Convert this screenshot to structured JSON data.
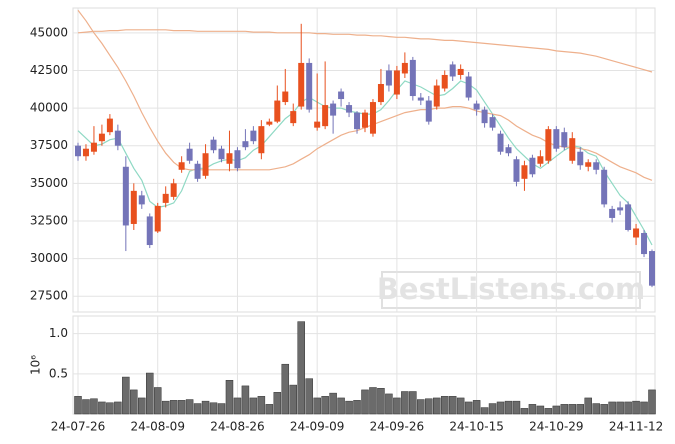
{
  "chart_data": {
    "type": "candlestick",
    "categories": [
      "24-07-26",
      null,
      null,
      null,
      null,
      null,
      null,
      null,
      null,
      null,
      "24-08-09",
      null,
      null,
      null,
      null,
      null,
      null,
      null,
      null,
      null,
      "24-08-26",
      null,
      null,
      null,
      null,
      null,
      null,
      null,
      null,
      null,
      "24-09-09",
      null,
      null,
      null,
      null,
      null,
      null,
      null,
      null,
      null,
      "24-09-26",
      null,
      null,
      null,
      null,
      null,
      null,
      null,
      null,
      null,
      "24-10-15",
      null,
      null,
      null,
      null,
      null,
      null,
      null,
      null,
      null,
      "24-10-29",
      null,
      null,
      null,
      null,
      null,
      null,
      null,
      null,
      null,
      "24-11-12",
      null,
      null
    ],
    "open": [
      37500,
      36800,
      37100,
      37800,
      38400,
      38500,
      36100,
      32300,
      34200,
      32800,
      31800,
      33700,
      34100,
      35900,
      37300,
      36300,
      35500,
      37900,
      37300,
      36300,
      37200,
      37800,
      38500,
      37000,
      38900,
      39100,
      40400,
      39000,
      40100,
      43000,
      38700,
      38800,
      40300,
      41100,
      40200,
      39700,
      38700,
      38300,
      40400,
      42500,
      40900,
      42300,
      43200,
      40700,
      40500,
      40100,
      41300,
      42900,
      42200,
      42100,
      40300,
      39900,
      39400,
      38300,
      37400,
      36600,
      35300,
      36700,
      36300,
      36500,
      38600,
      38400,
      36500,
      37100,
      36100,
      36400,
      35900,
      33300,
      33400,
      33600,
      31400,
      31700,
      30500
    ],
    "high": [
      37700,
      37600,
      38800,
      38900,
      39600,
      38900,
      36800,
      35000,
      34500,
      33000,
      33700,
      34800,
      35300,
      36800,
      37700,
      36500,
      37600,
      38100,
      37500,
      38500,
      37400,
      38600,
      38800,
      39200,
      39300,
      41500,
      42600,
      40300,
      45600,
      43300,
      42300,
      43100,
      40500,
      41300,
      40400,
      39800,
      39900,
      40600,
      42600,
      42900,
      42800,
      43700,
      43400,
      41000,
      40800,
      41900,
      42500,
      43100,
      42900,
      42400,
      40500,
      40100,
      39600,
      38500,
      37600,
      36800,
      36500,
      36900,
      37200,
      38800,
      38800,
      38700,
      38400,
      37400,
      36600,
      36600,
      36100,
      33500,
      33800,
      33800,
      32300,
      31900,
      30600
    ],
    "low": [
      36500,
      36500,
      36900,
      37500,
      38200,
      37200,
      30500,
      31900,
      33300,
      30700,
      31700,
      33400,
      33900,
      35700,
      36300,
      35100,
      35300,
      37000,
      36400,
      35800,
      35800,
      37200,
      37600,
      36600,
      38800,
      39000,
      40200,
      38800,
      39900,
      39700,
      38500,
      38600,
      38300,
      40100,
      39400,
      38300,
      38400,
      38100,
      40200,
      41100,
      40600,
      42000,
      40500,
      40200,
      38900,
      39900,
      41100,
      41800,
      41900,
      40500,
      39500,
      38700,
      38500,
      36900,
      36800,
      34800,
      34500,
      35400,
      36100,
      36300,
      37100,
      37200,
      36300,
      35900,
      35800,
      35600,
      33400,
      32400,
      32900,
      31800,
      30900,
      30100,
      28100
    ],
    "close": [
      36800,
      37300,
      37700,
      38300,
      39300,
      37500,
      32200,
      34500,
      33600,
      30900,
      33500,
      34300,
      35000,
      36400,
      36500,
      35300,
      37000,
      37200,
      36600,
      37000,
      36000,
      37400,
      37800,
      38800,
      39100,
      40500,
      41100,
      39800,
      43000,
      39900,
      39100,
      40200,
      39500,
      40600,
      39700,
      38600,
      39700,
      40400,
      41600,
      41500,
      42500,
      43000,
      40800,
      40500,
      39100,
      41500,
      42200,
      42100,
      42600,
      40700,
      39900,
      39000,
      38700,
      37100,
      37000,
      35100,
      36200,
      35600,
      36800,
      38600,
      37300,
      37400,
      38000,
      36200,
      36400,
      35900,
      33600,
      32700,
      33200,
      31900,
      32000,
      30300,
      28200
    ],
    "up_color": "#e8501e",
    "down_color": "#7474b8",
    "series": [
      {
        "color": "#8fd9c4",
        "values": [
          38500,
          38000,
          37500,
          37600,
          37900,
          38000,
          37000,
          36000,
          35200,
          33800,
          33400,
          33500,
          33700,
          34500,
          35800,
          36000,
          36000,
          36300,
          36500,
          36600,
          36500,
          36700,
          37200,
          37500,
          38100,
          38700,
          39300,
          39700,
          40400,
          40700,
          40400,
          40100,
          40000,
          40000,
          39800,
          39700,
          39600,
          39600,
          39900,
          40500,
          41200,
          41800,
          41600,
          41400,
          41100,
          40800,
          40900,
          41300,
          41800,
          41600,
          41200,
          40400,
          39600,
          38800,
          38000,
          37300,
          36800,
          36300,
          36000,
          36400,
          36800,
          37200,
          37500,
          37400,
          37000,
          36800,
          35800,
          35000,
          34200,
          33700,
          32800,
          31900,
          30900
        ]
      },
      {
        "color": "#eeb08c",
        "values": [
          46500,
          45800,
          45000,
          44300,
          43500,
          42700,
          41800,
          40800,
          39700,
          38700,
          37800,
          37000,
          36400,
          36000,
          35900,
          35900,
          35900,
          35900,
          35900,
          35900,
          35900,
          35900,
          35900,
          35900,
          35900,
          36000,
          36100,
          36300,
          36600,
          36900,
          37300,
          37600,
          37900,
          38200,
          38400,
          38500,
          38700,
          38900,
          39100,
          39300,
          39500,
          39700,
          39800,
          39900,
          39900,
          40000,
          40000,
          40100,
          40100,
          40000,
          39800,
          39700,
          39600,
          39500,
          39200,
          38800,
          38500,
          38200,
          38000,
          37700,
          37500,
          37400,
          37400,
          37300,
          37200,
          37000,
          36700,
          36400,
          36100,
          35900,
          35700,
          35400,
          35200
        ]
      },
      {
        "color": "#eeb08c",
        "values": [
          45000,
          45050,
          45100,
          45100,
          45150,
          45150,
          45200,
          45200,
          45200,
          45200,
          45200,
          45200,
          45150,
          45150,
          45150,
          45100,
          45100,
          45100,
          45100,
          45100,
          45100,
          45100,
          45050,
          45050,
          45050,
          45000,
          45000,
          45000,
          45000,
          45000,
          44950,
          44950,
          44900,
          44900,
          44900,
          44850,
          44850,
          44800,
          44800,
          44750,
          44700,
          44700,
          44650,
          44600,
          44600,
          44550,
          44500,
          44500,
          44450,
          44400,
          44350,
          44300,
          44250,
          44200,
          44150,
          44100,
          44050,
          44000,
          43950,
          43900,
          43800,
          43750,
          43700,
          43650,
          43550,
          43450,
          43300,
          43150,
          43000,
          42850,
          42700,
          42550,
          42400
        ]
      }
    ],
    "ylim": [
      26450,
      46650
    ],
    "yticks": [
      27500,
      30000,
      32500,
      35000,
      37500,
      40000,
      42500,
      45000
    ],
    "volume": [
      0.22,
      0.18,
      0.19,
      0.15,
      0.14,
      0.15,
      0.46,
      0.3,
      0.2,
      0.51,
      0.33,
      0.16,
      0.17,
      0.17,
      0.18,
      0.13,
      0.16,
      0.14,
      0.13,
      0.42,
      0.2,
      0.35,
      0.2,
      0.22,
      0.12,
      0.27,
      0.62,
      0.36,
      1.15,
      0.44,
      0.2,
      0.22,
      0.26,
      0.2,
      0.16,
      0.17,
      0.3,
      0.33,
      0.32,
      0.25,
      0.2,
      0.28,
      0.28,
      0.18,
      0.19,
      0.2,
      0.22,
      0.22,
      0.2,
      0.15,
      0.17,
      0.08,
      0.13,
      0.15,
      0.16,
      0.16,
      0.07,
      0.12,
      0.1,
      0.07,
      0.1,
      0.12,
      0.12,
      0.12,
      0.2,
      0.13,
      0.12,
      0.15,
      0.15,
      0.15,
      0.16,
      0.15,
      0.3
    ],
    "volume_color": "#6b6b6b",
    "volume_ylim": [
      0,
      1.22
    ],
    "volume_yticks": [
      0.5,
      {
        "value": 1.0,
        "label": "1.0"
      }
    ],
    "volume_ylabel": "10⁶",
    "watermark": "BestListens.com",
    "grid": true
  }
}
